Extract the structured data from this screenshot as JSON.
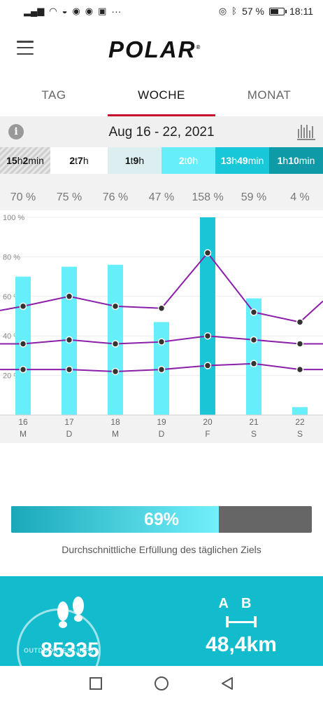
{
  "status_bar": {
    "battery": "57 %",
    "time": "18:11",
    "more": "···"
  },
  "header": {
    "logo_text": "POLAR",
    "logo_mark": "®"
  },
  "tabs": [
    {
      "label": "TAG",
      "active": false
    },
    {
      "label": "WOCHE",
      "active": true
    },
    {
      "label": "MONAT",
      "active": false
    }
  ],
  "date_range": "Aug 16 - 22, 2021",
  "durations": [
    {
      "num1": "15",
      "unit1": "h",
      "num2": "2",
      "unit2": "min"
    },
    {
      "num1": "2",
      "unit1": "t",
      "num2": "7",
      "unit2": "h"
    },
    {
      "num1": "1",
      "unit1": "t",
      "num2": "9",
      "unit2": "h"
    },
    {
      "num1": "2",
      "unit1": "t",
      "num2": "0",
      "unit2": "h"
    },
    {
      "num1": "13",
      "unit1": "h",
      "num2": "49",
      "unit2": "min"
    },
    {
      "num1": "1",
      "unit1": "h",
      "num2": "10",
      "unit2": "min"
    }
  ],
  "chart_data": {
    "type": "bar",
    "categories": [
      "16",
      "17",
      "18",
      "19",
      "20",
      "21",
      "22"
    ],
    "weekday_labels": [
      "M",
      "D",
      "M",
      "D",
      "F",
      "S",
      "S"
    ],
    "values": [
      70,
      75,
      76,
      47,
      158,
      59,
      4
    ],
    "value_labels": [
      "70 %",
      "75 %",
      "76 %",
      "47 %",
      "158 %",
      "59 %",
      "4 %"
    ],
    "ylim": [
      0,
      100
    ],
    "yticks": [
      "100 %",
      "80 %",
      "60 %",
      "40 %",
      "20 %"
    ],
    "bar_color": "#66eefa",
    "highlight_bar_color": "#1ac5d6",
    "line_color": "#8b1faa",
    "lines": [
      {
        "values": [
          55,
          60,
          55,
          54,
          82,
          52,
          47
        ]
      },
      {
        "values": [
          36,
          38,
          36,
          37,
          40,
          38,
          36
        ]
      },
      {
        "values": [
          23,
          23,
          22,
          23,
          25,
          26,
          23
        ]
      }
    ],
    "markers_below": [
      1,
      4
    ]
  },
  "progress": {
    "percent": 69,
    "label": "69%",
    "caption": "Durchschnittliche Erfüllung des täglichen Ziels"
  },
  "stats": {
    "steps": "85335",
    "distance": "48,4km",
    "distance_icon_a": "A",
    "distance_icon_b": "B"
  },
  "watermark": "OUTDOORTEST.INFO"
}
